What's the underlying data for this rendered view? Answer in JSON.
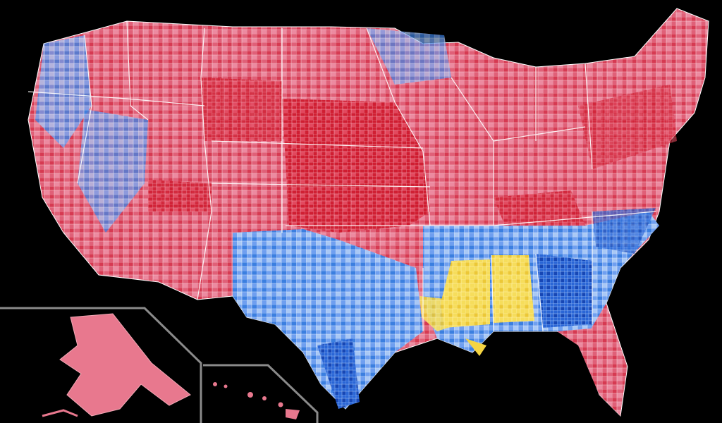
{
  "map": {
    "background": "#000000",
    "inset_frame_color": "#8a8a8a",
    "state_border_color": "#ffffff",
    "palette": {
      "strong_red": "#cc0000",
      "red": "#d9334a",
      "light_red": "#e8788e",
      "pale_red": "#f2a9b6",
      "pale_blue": "#a9c8f5",
      "light_blue": "#74a7ee",
      "blue": "#3b7fe0",
      "strong_blue": "#1a52c8",
      "yellow": "#f5d442",
      "dark_yellow": "#e0b400"
    },
    "regions": [
      {
        "id": "alabama-region",
        "color_key": "yellow"
      },
      {
        "id": "mississippi-region",
        "color_key": "yellow"
      },
      {
        "id": "louisiana-region",
        "color_key": "yellow"
      },
      {
        "id": "georgia-region",
        "color_key": "blue"
      },
      {
        "id": "texas-region",
        "color_key": "light_blue"
      },
      {
        "id": "great-plains-region",
        "color_key": "strong_red"
      },
      {
        "id": "alaska-region",
        "color_key": "light_red"
      },
      {
        "id": "hawaii-region",
        "color_key": "light_red"
      }
    ]
  }
}
